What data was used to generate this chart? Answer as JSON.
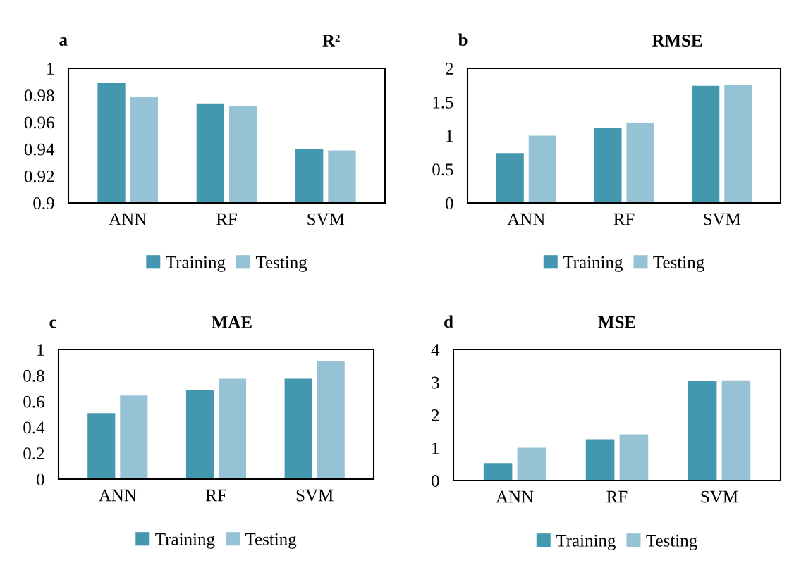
{
  "chart_data": [
    {
      "type": "bar",
      "title": "R²",
      "annotations": [
        "a"
      ],
      "categories": [
        "ANN",
        "RF",
        "SVM"
      ],
      "series": [
        {
          "name": "Training",
          "color": "#4398b0",
          "values": [
            0.989,
            0.974,
            0.94
          ]
        },
        {
          "name": "Testing",
          "color": "#95c3d5",
          "values": [
            0.979,
            0.972,
            0.939
          ]
        }
      ],
      "ylim": [
        0.9,
        1
      ],
      "yticks": [
        0.9,
        0.92,
        0.94,
        0.96,
        0.98,
        1
      ],
      "grid": false,
      "legend": "bottom"
    },
    {
      "type": "bar",
      "title": "RMSE",
      "annotations": [
        "b"
      ],
      "categories": [
        "ANN",
        "RF",
        "SVM"
      ],
      "series": [
        {
          "name": "Training",
          "color": "#4398b0",
          "values": [
            0.74,
            1.12,
            1.74
          ]
        },
        {
          "name": "Testing",
          "color": "#95c3d5",
          "values": [
            1.0,
            1.19,
            1.75
          ]
        }
      ],
      "ylim": [
        0,
        2
      ],
      "yticks": [
        0,
        0.5,
        1,
        1.5,
        2
      ],
      "grid": false,
      "legend": "bottom"
    },
    {
      "type": "bar",
      "title": "MAE",
      "annotations": [
        "c"
      ],
      "categories": [
        "ANN",
        "RF",
        "SVM"
      ],
      "series": [
        {
          "name": "Training",
          "color": "#4398b0",
          "values": [
            0.51,
            0.69,
            0.775
          ]
        },
        {
          "name": "Testing",
          "color": "#95c3d5",
          "values": [
            0.645,
            0.775,
            0.91
          ]
        }
      ],
      "ylim": [
        0,
        1
      ],
      "yticks": [
        0,
        0.2,
        0.4,
        0.6,
        0.8,
        1
      ],
      "grid": false,
      "legend": "bottom"
    },
    {
      "type": "bar",
      "title": "MSE",
      "annotations": [
        "d"
      ],
      "categories": [
        "ANN",
        "RF",
        "SVM"
      ],
      "series": [
        {
          "name": "Training",
          "color": "#4398b0",
          "values": [
            0.53,
            1.26,
            3.04
          ]
        },
        {
          "name": "Testing",
          "color": "#95c3d5",
          "values": [
            1.0,
            1.41,
            3.06
          ]
        }
      ],
      "ylim": [
        0,
        4
      ],
      "yticks": [
        0,
        1,
        2,
        3,
        4
      ],
      "grid": false,
      "legend": "bottom"
    }
  ]
}
